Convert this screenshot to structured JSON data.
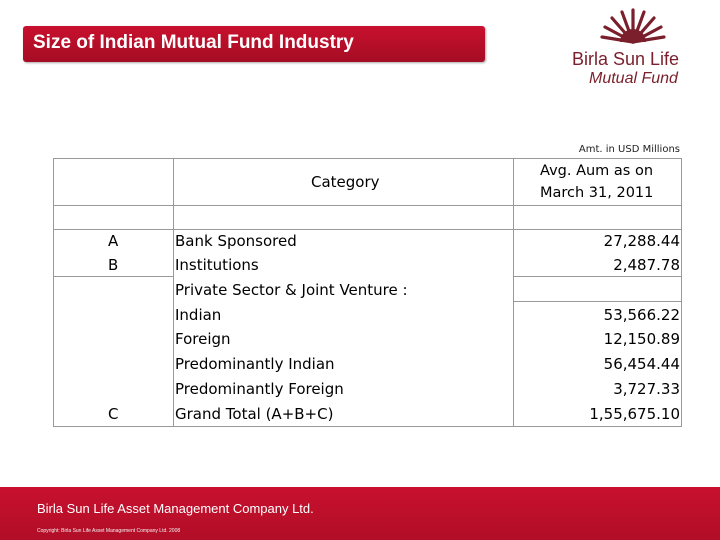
{
  "header": {
    "title": "Size of Indian Mutual Fund Industry"
  },
  "logo": {
    "line1": "Birla Sun Life",
    "line2": "Mutual Fund"
  },
  "note": "Amt. in USD Millions",
  "table": {
    "header_category": "Category",
    "header_aum_line1": "Avg. Aum as on",
    "header_aum_line2": "March 31, 2011",
    "letters": [
      "A",
      "B",
      "C"
    ],
    "rows": [
      {
        "label": "Bank Sponsored",
        "value": "27,288.44"
      },
      {
        "label": "Institutions",
        "value": "2,487.78"
      },
      {
        "label": "Private Sector & Joint Venture :",
        "value": ""
      },
      {
        "label": "Indian",
        "value": "53,566.22"
      },
      {
        "label": "Foreign",
        "value": "12,150.89"
      },
      {
        "label": "Predominantly Indian",
        "value": "56,454.44"
      },
      {
        "label": "Predominantly Foreign",
        "value": "3,727.33"
      },
      {
        "label": "Grand Total (A+B+C)",
        "value": "1,55,675.10"
      }
    ]
  },
  "footer": {
    "company": "Birla Sun Life Asset Management Company Ltd.",
    "copyright": "Copyright: Birla Sun Life Asset Management Company Ltd. 2008"
  },
  "colors": {
    "brand_red": "#c8102e",
    "logo_maroon": "#7a1f2b"
  }
}
